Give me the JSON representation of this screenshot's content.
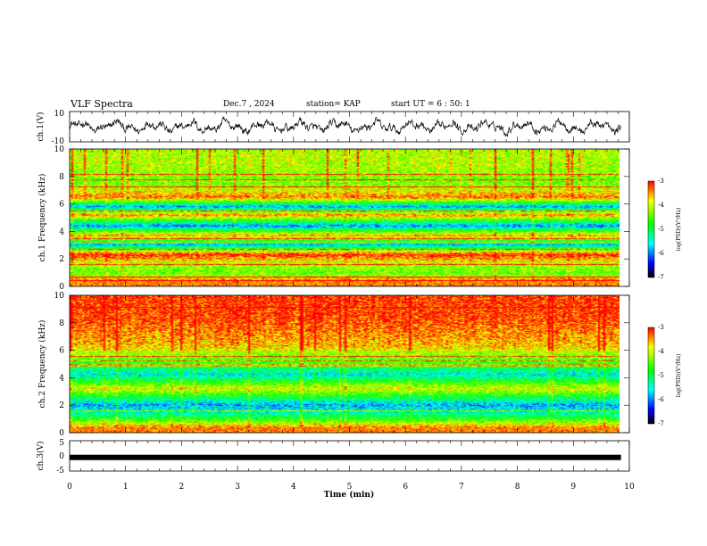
{
  "header": {
    "title": "VLF Spectra",
    "date": "Dec.7 , 2024",
    "station": "station= KAP",
    "start_ut": "start UT =  6 : 50: 1"
  },
  "chart_data": [
    {
      "type": "line",
      "id": "ch1-waveform",
      "ylabel": "ch.1(V)",
      "ylim": [
        -10,
        10
      ],
      "ytick_labels": [
        "10",
        "-10"
      ],
      "xlim": [
        0,
        10
      ],
      "description_values": "noisy waveform oscillating roughly between -4 and +6 V"
    },
    {
      "type": "heatmap",
      "id": "ch1-spectrogram",
      "ylabel": "ch.1 Frequency (kHz)",
      "ylim": [
        0,
        10
      ],
      "yticks": [
        0,
        2,
        4,
        6,
        8,
        10
      ],
      "xlim": [
        0,
        9.85
      ],
      "colorbar": {
        "label": "log(PSD)(V²/Hz)",
        "range": [
          -7,
          -3
        ],
        "tick_labels": [
          "-3",
          "-4",
          "-5",
          "-6",
          "-7"
        ],
        "colors": [
          "#ff0000",
          "#ffff00",
          "#00ff00",
          "#00ffff",
          "#0000ff",
          "#000000"
        ]
      },
      "bands_khz": [
        {
          "freq": 0.3,
          "level": -3.2
        },
        {
          "freq": 0.9,
          "level": -4.5
        },
        {
          "freq": 1.6,
          "level": -4.2
        },
        {
          "freq": 2.3,
          "level": -3.1
        },
        {
          "freq": 3.0,
          "level": -5.8
        },
        {
          "freq": 3.7,
          "level": -3.6
        },
        {
          "freq": 4.4,
          "level": -6.0
        },
        {
          "freq": 5.2,
          "level": -3.5
        },
        {
          "freq": 5.8,
          "level": -5.9
        },
        {
          "freq": 6.5,
          "level": -3.4
        },
        {
          "freq": 7.5,
          "level": -4.5
        },
        {
          "freq": 9.0,
          "level": -4.2
        }
      ]
    },
    {
      "type": "heatmap",
      "id": "ch2-spectrogram",
      "ylabel": "ch.2 Frequency (kHz)",
      "ylim": [
        0,
        10
      ],
      "yticks": [
        0,
        2,
        4,
        6,
        8,
        10
      ],
      "xlim": [
        0,
        9.85
      ],
      "colorbar": {
        "label": "log(PSD)(V²/Hz)",
        "range": [
          -7,
          -3
        ],
        "tick_labels": [
          "-3",
          "-4",
          "-5",
          "-6",
          "-7"
        ],
        "colors": [
          "#ff0000",
          "#ffff00",
          "#00ff00",
          "#00ffff",
          "#0000ff",
          "#000000"
        ]
      },
      "bands_khz": [
        {
          "freq": 0.2,
          "level": -3.2
        },
        {
          "freq": 1.2,
          "level": -5.2
        },
        {
          "freq": 2.0,
          "level": -5.9
        },
        {
          "freq": 3.2,
          "level": -4.0
        },
        {
          "freq": 4.2,
          "level": -5.6
        },
        {
          "freq": 5.0,
          "level": -4.8
        },
        {
          "freq": 6.3,
          "level": -3.8
        },
        {
          "freq": 8.5,
          "level": -3.3
        }
      ]
    },
    {
      "type": "line",
      "id": "ch3-waveform",
      "ylabel": "ch.3(V)",
      "ylim": [
        -5,
        5
      ],
      "ytick_labels": [
        "5",
        "0",
        "-5"
      ],
      "xlim": [
        0,
        10
      ],
      "values": {
        "x": [
          0,
          9.85
        ],
        "y": [
          -0.5,
          -0.5
        ]
      }
    }
  ],
  "time_axis": {
    "label": "Time (min)",
    "ticks": [
      "0",
      "1",
      "2",
      "3",
      "4",
      "5",
      "6",
      "7",
      "8",
      "9",
      "10"
    ]
  }
}
